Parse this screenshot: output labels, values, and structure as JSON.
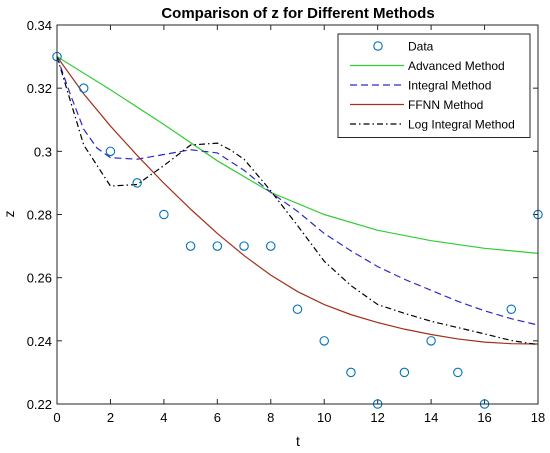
{
  "chart_data": {
    "type": "line",
    "title": "Comparison of z for Different Methods",
    "xlabel": "t",
    "ylabel": "z",
    "xlim": [
      0,
      18
    ],
    "ylim": [
      0.22,
      0.34
    ],
    "xticks": [
      0,
      2,
      4,
      6,
      8,
      10,
      12,
      14,
      16,
      18
    ],
    "xtick_labels": [
      "0",
      "2",
      "4",
      "6",
      "8",
      "10",
      "12",
      "14",
      "16",
      "18"
    ],
    "yticks": [
      0.22,
      0.24,
      0.26,
      0.28,
      0.3,
      0.32,
      0.34
    ],
    "ytick_labels": [
      "0.22",
      "0.24",
      "0.26",
      "0.28",
      "0.3",
      "0.32",
      "0.34"
    ],
    "grid": false,
    "legend_position": "top-right",
    "series": [
      {
        "name": "Data",
        "style": "markers",
        "marker": "circle",
        "color": "#0072BD",
        "x": [
          0,
          1,
          2,
          3,
          4,
          5,
          6,
          7,
          8,
          9,
          10,
          11,
          12,
          13,
          14,
          15,
          16,
          17,
          18
        ],
        "y": [
          0.33,
          0.32,
          0.3,
          0.29,
          0.28,
          0.27,
          0.27,
          0.27,
          0.27,
          0.25,
          0.24,
          0.23,
          0.22,
          0.23,
          0.24,
          0.23,
          0.22,
          0.25,
          0.28
        ]
      },
      {
        "name": "Advanced Method",
        "style": "solid",
        "color": "#33CC33",
        "x": [
          0,
          2,
          4,
          6,
          8,
          10,
          12,
          14,
          16,
          18
        ],
        "y": [
          0.33,
          0.3195,
          0.3085,
          0.297,
          0.287,
          0.28,
          0.275,
          0.2717,
          0.2693,
          0.2677
        ]
      },
      {
        "name": "Integral Method",
        "style": "dashed",
        "color": "#2B2BC8",
        "x": [
          0,
          0.5,
          1,
          1.5,
          2,
          3,
          4,
          5,
          6,
          7,
          8,
          9,
          10,
          11,
          12,
          13,
          14,
          15,
          16,
          17,
          18
        ],
        "y": [
          0.33,
          0.318,
          0.307,
          0.301,
          0.298,
          0.2975,
          0.299,
          0.3005,
          0.2995,
          0.294,
          0.287,
          0.281,
          0.274,
          0.2685,
          0.2635,
          0.2595,
          0.256,
          0.2525,
          0.2495,
          0.247,
          0.245
        ]
      },
      {
        "name": "FFNN Method",
        "style": "solid",
        "color": "#A2301B",
        "x": [
          0,
          1,
          2,
          3,
          4,
          5,
          6,
          7,
          8,
          9,
          10,
          11,
          12,
          13,
          14,
          15,
          16,
          17,
          18
        ],
        "y": [
          0.33,
          0.3182,
          0.308,
          0.2987,
          0.2899,
          0.2817,
          0.274,
          0.267,
          0.2608,
          0.2556,
          0.2515,
          0.2483,
          0.2458,
          0.2437,
          0.242,
          0.2406,
          0.2396,
          0.2391,
          0.239
        ]
      },
      {
        "name": "Log Integral Method",
        "style": "dashdot",
        "color": "#000000",
        "x": [
          0,
          1,
          2,
          3,
          4,
          5,
          6,
          6.5,
          7,
          8,
          9,
          10,
          11,
          12,
          13,
          14,
          15,
          16,
          17,
          18
        ],
        "y": [
          0.33,
          0.302,
          0.289,
          0.2895,
          0.2955,
          0.302,
          0.3026,
          0.3004,
          0.2975,
          0.2875,
          0.2765,
          0.2652,
          0.2575,
          0.2515,
          0.2487,
          0.2462,
          0.2442,
          0.2422,
          0.2401,
          0.2388
        ]
      }
    ]
  }
}
